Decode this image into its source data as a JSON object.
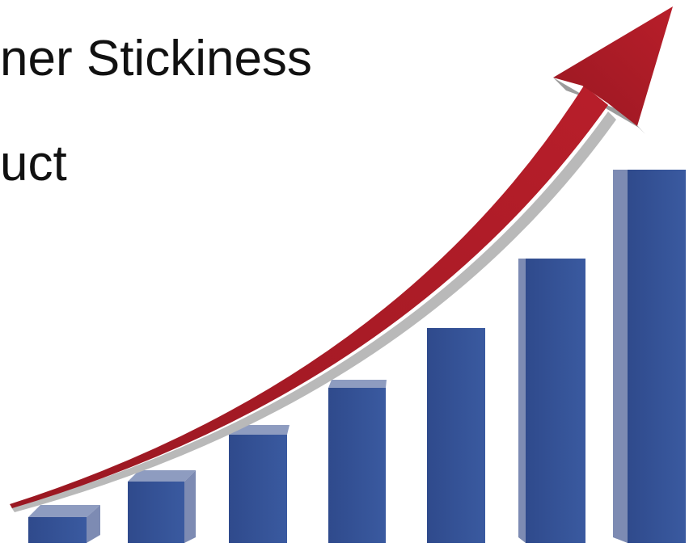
{
  "slide": {
    "lines": [
      "ner Stickiness",
      "uct"
    ]
  }
}
